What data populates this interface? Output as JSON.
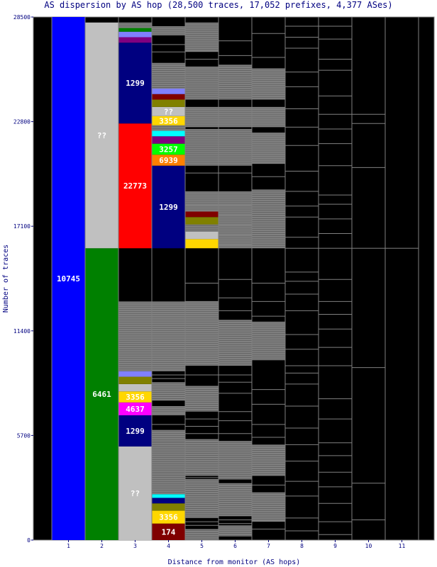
{
  "chart_data": {
    "type": "bar",
    "title": "AS dispersion by AS hop (28,500 traces, 17,052 prefixes, 4,377 ASes)",
    "xlabel": "Distance from monitor (AS hops)",
    "ylabel": "Number of traces",
    "ylim": [
      0,
      28500
    ],
    "y_ticks": [
      "0",
      "5700",
      "11400",
      "17100",
      "22800",
      "28500"
    ],
    "x_ticks": [
      "1",
      "2",
      "3",
      "4",
      "5",
      "6",
      "7",
      "8",
      "9",
      "10",
      "11"
    ],
    "colors": {
      "background": "#000000",
      "border": "#808080",
      "text": "#000080",
      "misc": "#808080",
      "blue": "#0000ff",
      "green": "#008000",
      "red": "#ff0000",
      "navy": "#000080",
      "silver": "#c0c0c0",
      "gold": "#ffd700",
      "lime": "#00ff00",
      "orange": "#ff8000",
      "magenta": "#ff00ff",
      "maroon": "#800000",
      "olive": "#808000",
      "cyan": "#00ffff",
      "periwinkle": "#8080ff",
      "purple": "#800080"
    },
    "series": [
      {
        "hop": 1,
        "segments": [
          {
            "label": "10745",
            "from": 0,
            "to": 28500,
            "color": "blue"
          }
        ]
      },
      {
        "hop": 2,
        "segments": [
          {
            "label": "6461",
            "from": 0,
            "to": 15900,
            "color": "green"
          },
          {
            "label": "??",
            "from": 15900,
            "to": 28200,
            "color": "silver"
          }
        ]
      },
      {
        "hop": 3,
        "segments": [
          {
            "label": "??",
            "from": 0,
            "to": 5100,
            "color": "silver"
          },
          {
            "label": "1299",
            "from": 5100,
            "to": 6800,
            "color": "navy"
          },
          {
            "label": "4637",
            "from": 6800,
            "to": 7500,
            "color": "magenta"
          },
          {
            "label": "3356",
            "from": 7500,
            "to": 8100,
            "color": "gold"
          },
          {
            "label": "",
            "from": 8100,
            "to": 8500,
            "color": "silver"
          },
          {
            "label": "",
            "from": 8500,
            "to": 8900,
            "color": "olive"
          },
          {
            "label": "",
            "from": 8900,
            "to": 9200,
            "color": "periwinkle"
          },
          {
            "label": "",
            "from": 9200,
            "to": 13000,
            "color": "misc"
          },
          {
            "label": "22773",
            "from": 15900,
            "to": 22700,
            "color": "red"
          },
          {
            "label": "1299",
            "from": 22700,
            "to": 27100,
            "color": "navy"
          },
          {
            "label": "",
            "from": 27100,
            "to": 27400,
            "color": "purple"
          },
          {
            "label": "",
            "from": 27400,
            "to": 27700,
            "color": "periwinkle"
          },
          {
            "label": "",
            "from": 27700,
            "to": 27900,
            "color": "green"
          },
          {
            "label": "",
            "from": 27900,
            "to": 28200,
            "color": "misc"
          }
        ]
      },
      {
        "hop": 4,
        "segments": [
          {
            "label": "174",
            "from": 0,
            "to": 900,
            "color": "maroon"
          },
          {
            "label": "3356",
            "from": 900,
            "to": 1600,
            "color": "gold"
          },
          {
            "label": "",
            "from": 1600,
            "to": 2000,
            "color": "olive"
          },
          {
            "label": "",
            "from": 2000,
            "to": 2300,
            "color": "navy"
          },
          {
            "label": "",
            "from": 2300,
            "to": 2500,
            "color": "cyan"
          },
          {
            "label": "",
            "from": 2500,
            "to": 3600,
            "color": "misc"
          },
          {
            "label": "",
            "from": 3600,
            "to": 5400,
            "color": "misc"
          },
          {
            "label": "",
            "from": 5400,
            "to": 6000,
            "color": "misc"
          },
          {
            "label": "",
            "from": 6800,
            "to": 7300,
            "color": "misc"
          },
          {
            "label": "",
            "from": 7600,
            "to": 8600,
            "color": "misc"
          },
          {
            "label": "",
            "from": 9200,
            "to": 13000,
            "color": "misc"
          },
          {
            "label": "1299",
            "from": 15900,
            "to": 20400,
            "color": "navy"
          },
          {
            "label": "6939",
            "from": 20400,
            "to": 21000,
            "color": "orange"
          },
          {
            "label": "3257",
            "from": 21000,
            "to": 21600,
            "color": "lime"
          },
          {
            "label": "",
            "from": 21600,
            "to": 22000,
            "color": "purple"
          },
          {
            "label": "",
            "from": 22000,
            "to": 22300,
            "color": "cyan"
          },
          {
            "label": "",
            "from": 22300,
            "to": 22600,
            "color": "misc"
          },
          {
            "label": "3356",
            "from": 22600,
            "to": 23100,
            "color": "gold"
          },
          {
            "label": "??",
            "from": 23100,
            "to": 23600,
            "color": "silver"
          },
          {
            "label": "",
            "from": 23600,
            "to": 24000,
            "color": "olive"
          },
          {
            "label": "",
            "from": 24000,
            "to": 24300,
            "color": "maroon"
          },
          {
            "label": "",
            "from": 24300,
            "to": 24600,
            "color": "periwinkle"
          },
          {
            "label": "",
            "from": 24600,
            "to": 26000,
            "color": "misc"
          },
          {
            "label": "",
            "from": 27500,
            "to": 28000,
            "color": "misc"
          }
        ]
      },
      {
        "hop": 5,
        "segments": [
          {
            "label": "",
            "from": 0,
            "to": 600,
            "color": "misc"
          },
          {
            "label": "",
            "from": 1200,
            "to": 3300,
            "color": "misc"
          },
          {
            "label": "",
            "from": 3500,
            "to": 5500,
            "color": "misc"
          },
          {
            "label": "",
            "from": 7000,
            "to": 8400,
            "color": "misc"
          },
          {
            "label": "",
            "from": 9500,
            "to": 13000,
            "color": "misc"
          },
          {
            "label": "",
            "from": 15900,
            "to": 16400,
            "color": "gold"
          },
          {
            "label": "",
            "from": 16400,
            "to": 16800,
            "color": "silver"
          },
          {
            "label": "",
            "from": 16800,
            "to": 17200,
            "color": "misc"
          },
          {
            "label": "",
            "from": 17200,
            "to": 17600,
            "color": "olive"
          },
          {
            "label": "",
            "from": 17600,
            "to": 17900,
            "color": "maroon"
          },
          {
            "label": "",
            "from": 17900,
            "to": 19000,
            "color": "misc"
          },
          {
            "label": "",
            "from": 20400,
            "to": 22400,
            "color": "misc"
          },
          {
            "label": "",
            "from": 22500,
            "to": 23600,
            "color": "misc"
          },
          {
            "label": "",
            "from": 24000,
            "to": 25800,
            "color": "misc"
          },
          {
            "label": "",
            "from": 26600,
            "to": 28200,
            "color": "misc"
          }
        ]
      },
      {
        "hop": 6,
        "segments": [
          {
            "label": "",
            "from": 200,
            "to": 800,
            "color": "misc"
          },
          {
            "label": "",
            "from": 1300,
            "to": 3100,
            "color": "misc"
          },
          {
            "label": "",
            "from": 3300,
            "to": 5400,
            "color": "misc"
          },
          {
            "label": "",
            "from": 9500,
            "to": 12000,
            "color": "misc"
          },
          {
            "label": "",
            "from": 15900,
            "to": 19000,
            "color": "misc"
          },
          {
            "label": "",
            "from": 20400,
            "to": 22400,
            "color": "misc"
          },
          {
            "label": "",
            "from": 22500,
            "to": 23600,
            "color": "misc"
          },
          {
            "label": "",
            "from": 24000,
            "to": 25900,
            "color": "misc"
          }
        ]
      },
      {
        "hop": 7,
        "segments": [
          {
            "label": "",
            "from": 1000,
            "to": 2600,
            "color": "misc"
          },
          {
            "label": "",
            "from": 3500,
            "to": 5200,
            "color": "misc"
          },
          {
            "label": "",
            "from": 9800,
            "to": 11900,
            "color": "misc"
          },
          {
            "label": "",
            "from": 15900,
            "to": 19100,
            "color": "misc"
          },
          {
            "label": "",
            "from": 20500,
            "to": 22200,
            "color": "misc"
          },
          {
            "label": "",
            "from": 22500,
            "to": 23600,
            "color": "misc"
          },
          {
            "label": "",
            "from": 24000,
            "to": 25700,
            "color": "misc"
          }
        ]
      }
    ],
    "separator_lines": [
      {
        "hop": 4,
        "values": [
          6300,
          6900,
          8800,
          9000,
          26600,
          27000
        ]
      },
      {
        "hop": 5,
        "values": [
          800,
          1000,
          3300,
          3400,
          5800,
          6200,
          6600,
          9000,
          13000,
          14000,
          20000,
          26200
        ]
      },
      {
        "hop": 6,
        "values": [
          900,
          1100,
          5800,
          6500,
          7000,
          8000,
          8600,
          9000,
          12500,
          13200,
          14200,
          20000,
          26400,
          27200
        ]
      },
      {
        "hop": 7,
        "values": [
          600,
          3000,
          5600,
          6300,
          7400,
          8200,
          12200,
          13000,
          14000,
          19800,
          26300,
          27600
        ]
      },
      {
        "hop": 8,
        "values": [
          500,
          1200,
          2400,
          3200,
          4300,
          5200,
          6100,
          7300,
          8500,
          9100,
          9500,
          10400,
          11200,
          12500,
          13400,
          14100,
          14600,
          15900,
          16500,
          17600,
          18200,
          19000,
          20100,
          21500,
          22500,
          23500,
          24700,
          25500,
          26800,
          27400,
          28000
        ]
      },
      {
        "hop": 9,
        "values": [
          300,
          1000,
          2000,
          2900,
          3700,
          4600,
          5300,
          6600,
          7700,
          9500,
          10500,
          11500,
          12300,
          13000,
          14200,
          15900,
          16700,
          17500,
          18300,
          18800,
          20400,
          21600,
          22400,
          23200,
          24200,
          25600,
          26200,
          27300,
          28000
        ]
      },
      {
        "hop": 10,
        "values": [
          1100,
          3100,
          9400,
          15900,
          20300,
          22700,
          23200
        ]
      },
      {
        "hop": 11,
        "values": [
          15900
        ]
      }
    ]
  }
}
